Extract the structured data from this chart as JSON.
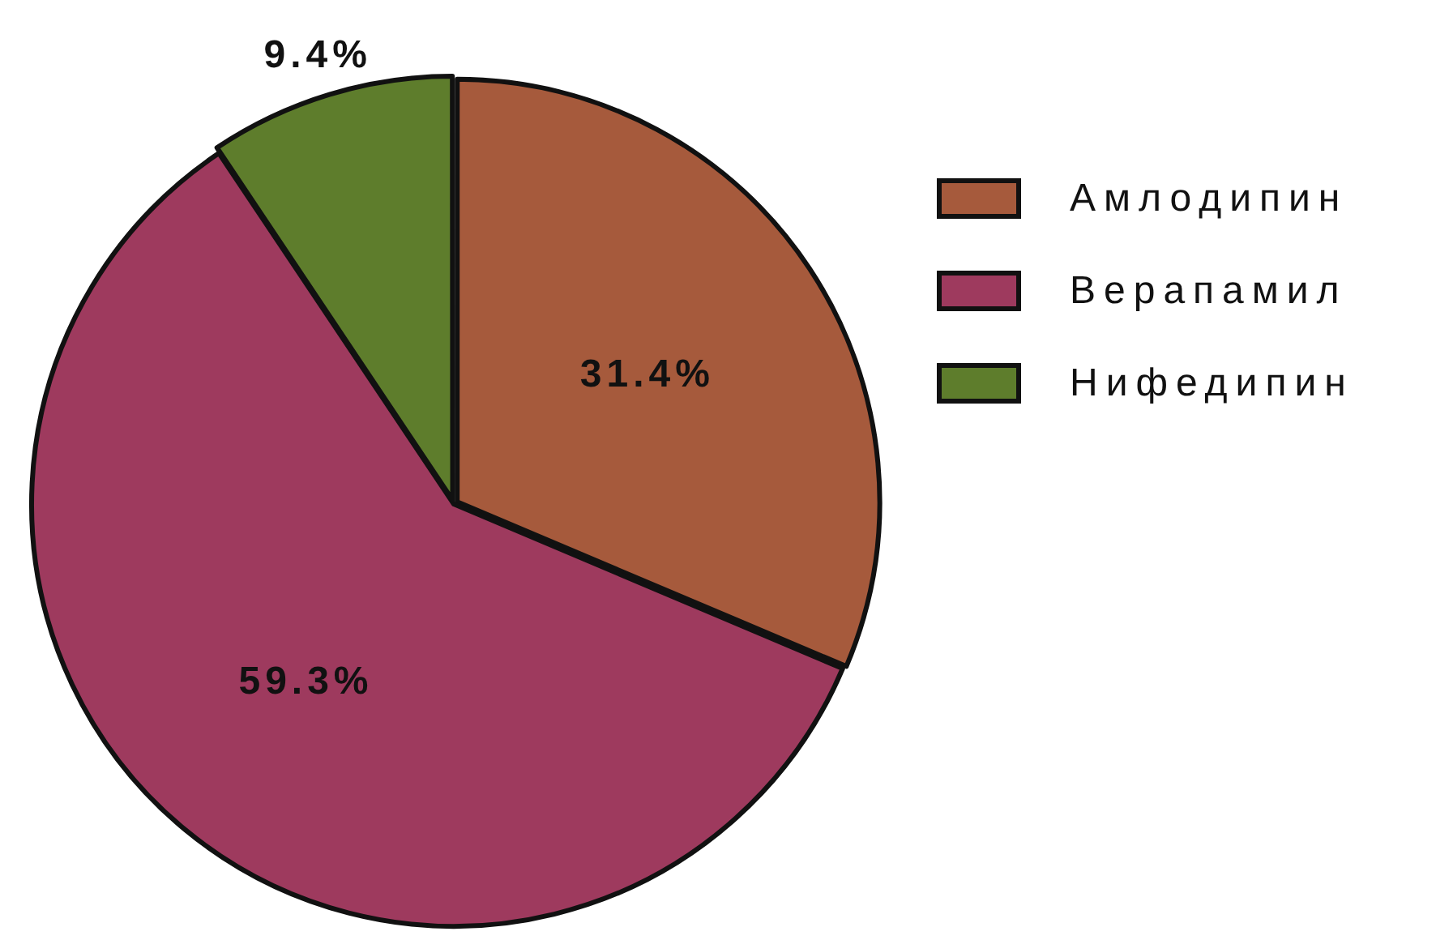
{
  "chart_data": {
    "type": "pie",
    "categories": [
      "Амлодипин",
      "Верапамил",
      "Нифедипин"
    ],
    "values": [
      31.4,
      59.3,
      9.4
    ],
    "colors": [
      "#a65a3c",
      "#9e3a5e",
      "#5e7d2c"
    ],
    "value_labels": [
      "31.4%",
      "59.3%",
      "9.4%"
    ],
    "legend": "right"
  }
}
